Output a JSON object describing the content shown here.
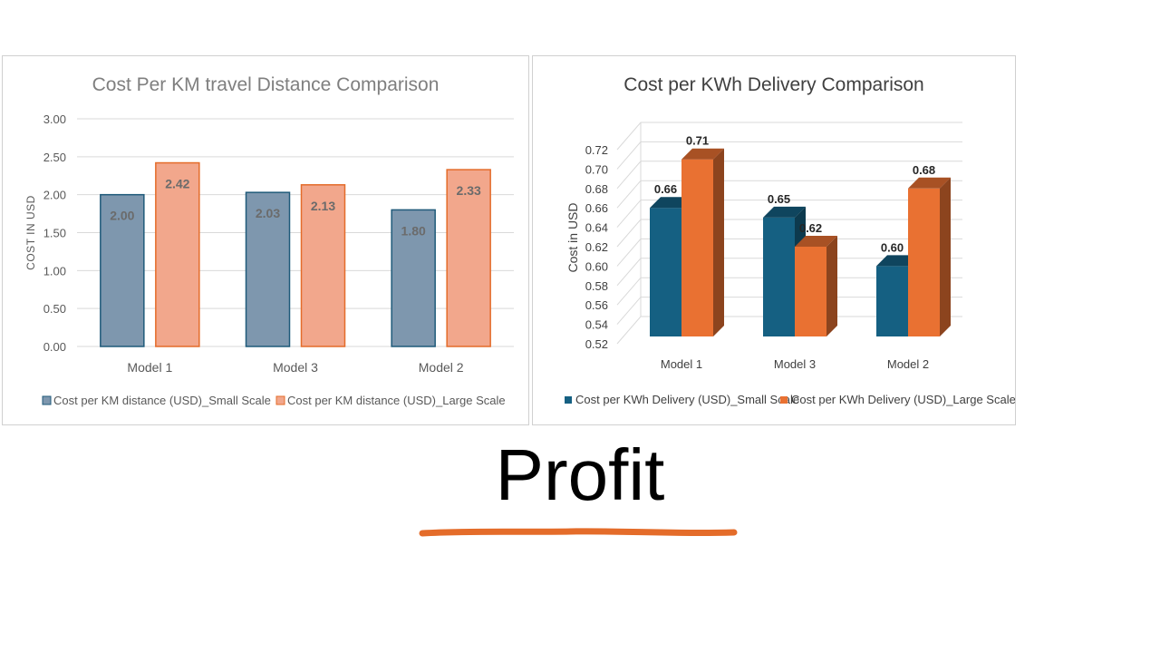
{
  "slide": {
    "title": "Profit",
    "underline_color": "#E46C2A"
  },
  "chart_data": [
    {
      "type": "bar",
      "title": "Cost Per KM travel Distance Comparison",
      "xlabel": "",
      "ylabel": "COST IN USD",
      "categories": [
        "Model 1",
        "Model 3",
        "Model 2"
      ],
      "series": [
        {
          "name": "Cost per KM distance (USD)_Small Scale",
          "values": [
            2.0,
            2.03,
            1.8
          ],
          "labels": [
            "2.00",
            "2.03",
            "1.80"
          ],
          "color": "#7E97AE",
          "edge_color": "#1F5A7A"
        },
        {
          "name": "Cost per KM distance (USD)_Large Scale",
          "values": [
            2.42,
            2.13,
            2.33
          ],
          "labels": [
            "2.42",
            "2.13",
            "2.33"
          ],
          "color": "#F2A78C",
          "edge_color": "#E46C2A"
        }
      ],
      "yticks": [
        "0.00",
        "0.50",
        "1.00",
        "1.50",
        "2.00",
        "2.50",
        "3.00"
      ],
      "ylim": [
        0,
        3
      ],
      "grid": true,
      "legend_position": "bottom"
    },
    {
      "type": "bar",
      "style": "3d-column",
      "title": "Cost per KWh Delivery Comparison",
      "xlabel": "",
      "ylabel": "Cost in USD",
      "categories": [
        "Model 1",
        "Model 3",
        "Model 2"
      ],
      "series": [
        {
          "name": "Cost per KWh Delivery (USD)_Small Scale",
          "values": [
            0.66,
            0.65,
            0.6
          ],
          "labels": [
            "0.66",
            "0.65",
            "0.60"
          ],
          "color": "#156082"
        },
        {
          "name": "Cost per KWh Delivery (USD)_Large Scale",
          "values": [
            0.71,
            0.62,
            0.68
          ],
          "labels": [
            "0.71",
            "0.62",
            "0.68"
          ],
          "color": "#E97132"
        }
      ],
      "yticks": [
        "0.52",
        "0.54",
        "0.56",
        "0.58",
        "0.60",
        "0.62",
        "0.64",
        "0.66",
        "0.68",
        "0.70",
        "0.72"
      ],
      "ylim": [
        0.52,
        0.72
      ],
      "grid": true,
      "legend_position": "bottom"
    }
  ]
}
